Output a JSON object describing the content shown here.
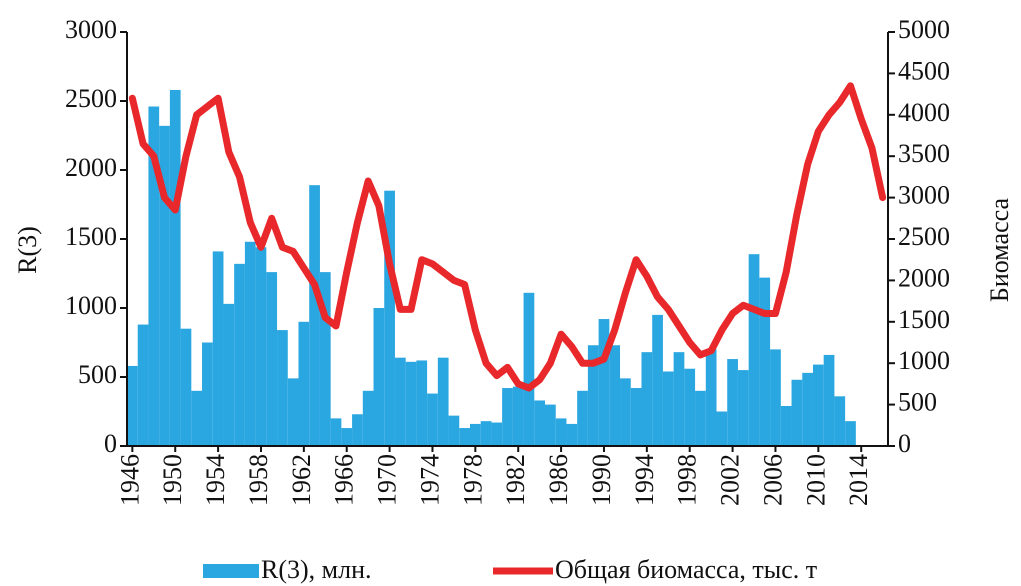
{
  "chart_data": {
    "type": "bar-line",
    "categories": [
      "1946",
      null,
      null,
      null,
      "1950",
      null,
      null,
      null,
      "1954",
      null,
      null,
      null,
      "1958",
      null,
      null,
      null,
      "1962",
      null,
      null,
      null,
      "1966",
      null,
      null,
      null,
      "1970",
      null,
      null,
      null,
      "1974",
      null,
      null,
      null,
      "1978",
      null,
      null,
      null,
      "1982",
      null,
      null,
      null,
      "1986",
      null,
      null,
      null,
      "1990",
      null,
      null,
      null,
      "1994",
      null,
      null,
      null,
      "1998",
      null,
      null,
      null,
      "2002",
      null,
      null,
      null,
      "2006",
      null,
      null,
      null,
      "2010",
      null,
      null,
      null,
      "2014",
      null,
      null
    ],
    "ylabel": "R(3)",
    "y2label": "Биомасса",
    "ylim": [
      0,
      3000
    ],
    "yticks": [
      0,
      500,
      1000,
      1500,
      2000,
      2500,
      3000
    ],
    "y2lim": [
      0,
      5000
    ],
    "y2ticks": [
      0,
      500,
      1000,
      1500,
      2000,
      2500,
      3000,
      3500,
      4000,
      4500,
      5000
    ],
    "series": [
      {
        "name": "R(3), млн.",
        "type": "bar",
        "color": "#2aa6e0",
        "values": [
          580,
          880,
          2460,
          2320,
          2580,
          850,
          400,
          750,
          1410,
          1030,
          1320,
          1480,
          1440,
          1260,
          840,
          490,
          900,
          1890,
          1260,
          200,
          130,
          230,
          400,
          1000,
          1850,
          640,
          610,
          620,
          380,
          640,
          220,
          130,
          160,
          180,
          170,
          420,
          430,
          1110,
          330,
          300,
          200,
          160,
          400,
          730,
          920,
          730,
          490,
          420,
          680,
          950,
          540,
          680,
          560,
          400,
          700,
          250,
          630,
          550,
          1390,
          1220,
          700,
          290,
          480,
          530,
          590,
          660,
          360,
          180,
          null,
          null,
          null
        ]
      },
      {
        "name": "Общая биомасса, тыс. т",
        "type": "line",
        "axis": "y2",
        "color": "#e8282b",
        "values": [
          4200,
          3650,
          3500,
          3000,
          2850,
          3500,
          4000,
          4100,
          4200,
          3550,
          3250,
          2700,
          2400,
          2750,
          2400,
          2350,
          2150,
          1950,
          1550,
          1450,
          2100,
          2700,
          3200,
          2900,
          2200,
          1650,
          1650,
          2250,
          2200,
          2100,
          2000,
          1950,
          1400,
          1000,
          850,
          950,
          750,
          700,
          800,
          1000,
          1350,
          1200,
          1000,
          1000,
          1050,
          1400,
          1850,
          2250,
          2050,
          1800,
          1650,
          1450,
          1250,
          1100,
          1150,
          1400,
          1600,
          1700,
          1650,
          1600,
          1600,
          2100,
          2800,
          3400,
          3800,
          4000,
          4150,
          4350,
          3950,
          3600,
          3000
        ]
      }
    ]
  }
}
